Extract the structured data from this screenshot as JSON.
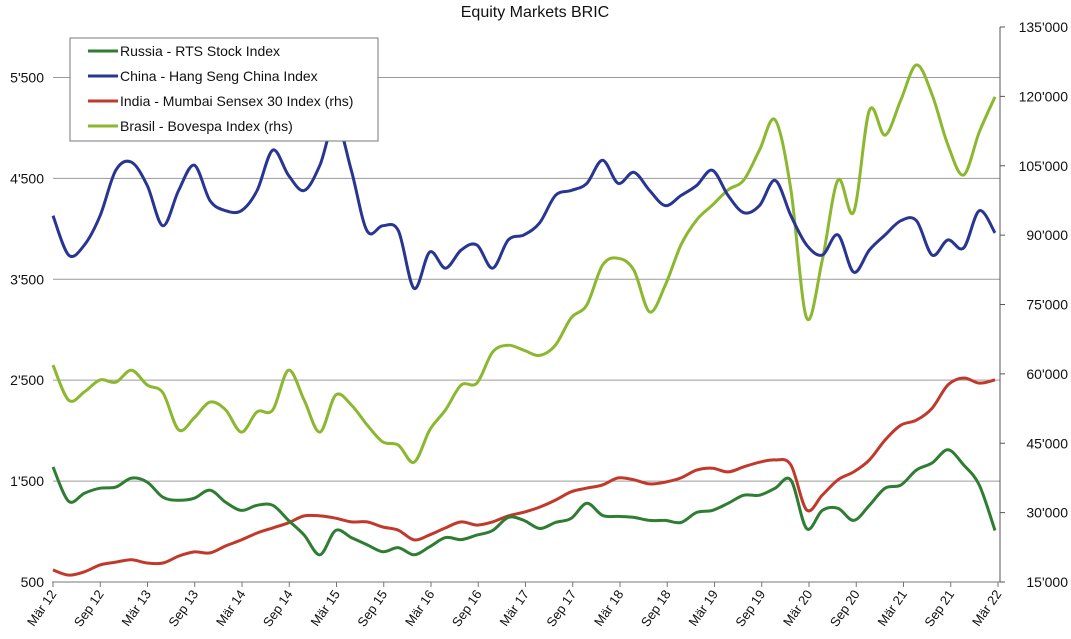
{
  "chart_data": {
    "type": "line",
    "title": "Equity Markets BRIC",
    "xlabel": "",
    "ylabel": "",
    "x_start": "Mär 12",
    "x_step_months": 2,
    "x_ticks": [
      "Mär 12",
      "Sep 12",
      "Mär 13",
      "Sep 13",
      "Mär 14",
      "Sep 14",
      "Mär 15",
      "Sep 15",
      "Mär 16",
      "Sep 16",
      "Mär 17",
      "Sep 17",
      "Mär 18",
      "Sep 18",
      "Mär 19",
      "Sep 19",
      "Mär 20",
      "Sep 20",
      "Mär 21",
      "Sep 21",
      "Mär 22"
    ],
    "y_left": {
      "ylim": [
        500,
        6000
      ],
      "ticks": [
        500,
        1500,
        2500,
        3500,
        4500,
        5500
      ],
      "tick_labels": [
        "500",
        "1'500",
        "2'500",
        "3'500",
        "4'500",
        "5'500"
      ]
    },
    "y_right": {
      "ylim": [
        15000,
        135000
      ],
      "ticks": [
        15000,
        30000,
        45000,
        60000,
        75000,
        90000,
        105000,
        120000,
        135000
      ],
      "tick_labels": [
        "15'000",
        "30'000",
        "45'000",
        "60'000",
        "75'000",
        "90'000",
        "105'000",
        "120'000",
        "135'000"
      ]
    },
    "grid": "horizontal",
    "legend_position": "top-left",
    "series": [
      {
        "name": "Russia - RTS Stock Index",
        "axis": "left",
        "color": "#2e7d32",
        "values": [
          1640,
          1300,
          1380,
          1430,
          1440,
          1530,
          1490,
          1340,
          1310,
          1330,
          1410,
          1290,
          1210,
          1260,
          1260,
          1110,
          965,
          770,
          1010,
          940,
          870,
          800,
          840,
          770,
          850,
          940,
          920,
          965,
          1010,
          1140,
          1110,
          1030,
          1090,
          1130,
          1280,
          1160,
          1150,
          1140,
          1110,
          1110,
          1090,
          1190,
          1210,
          1280,
          1360,
          1360,
          1430,
          1510,
          1030,
          1210,
          1230,
          1110,
          1260,
          1430,
          1460,
          1610,
          1680,
          1810,
          1660,
          1460,
          1010
        ]
      },
      {
        "name": "China - Hang Seng China Index",
        "axis": "left",
        "color": "#283593",
        "values": [
          4130,
          3740,
          3840,
          4130,
          4580,
          4660,
          4430,
          4030,
          4380,
          4630,
          4280,
          4180,
          4180,
          4380,
          4780,
          4530,
          4380,
          4630,
          5070,
          4580,
          3980,
          4030,
          3980,
          3410,
          3770,
          3610,
          3790,
          3840,
          3610,
          3890,
          3940,
          4060,
          4330,
          4380,
          4450,
          4680,
          4450,
          4560,
          4380,
          4230,
          4330,
          4430,
          4580,
          4330,
          4160,
          4230,
          4480,
          4130,
          3840,
          3740,
          3940,
          3570,
          3790,
          3940,
          4080,
          4080,
          3740,
          3890,
          3810,
          4180,
          3960
        ]
      },
      {
        "name": "India - Mumbai Sensex 30 Index (rhs)",
        "axis": "right",
        "color": "#c0392b",
        "values": [
          17600,
          16500,
          17200,
          18700,
          19300,
          19800,
          19100,
          19100,
          20600,
          21500,
          21300,
          22800,
          24100,
          25600,
          26700,
          27800,
          29300,
          29300,
          28800,
          28000,
          28000,
          26900,
          26200,
          24100,
          25200,
          26700,
          28000,
          27300,
          28000,
          29300,
          30100,
          31200,
          32700,
          34500,
          35300,
          36000,
          37500,
          37100,
          36200,
          36600,
          37500,
          39200,
          39600,
          38800,
          39900,
          40900,
          41400,
          40300,
          30600,
          33800,
          37100,
          38800,
          41400,
          45700,
          48900,
          50000,
          52600,
          57600,
          59100,
          58000,
          58700
        ]
      },
      {
        "name": "Brasil - Bovespa Index (rhs)",
        "axis": "right",
        "color": "#8bb82e",
        "values": [
          61900,
          54300,
          56100,
          58700,
          58200,
          60800,
          57600,
          55900,
          47900,
          50500,
          53900,
          52200,
          47400,
          51800,
          52200,
          60800,
          54300,
          47400,
          55400,
          53300,
          49000,
          45300,
          44600,
          40900,
          47900,
          52200,
          57600,
          58000,
          64700,
          66200,
          65100,
          64000,
          66200,
          72100,
          74900,
          83500,
          85000,
          82400,
          73400,
          79200,
          87900,
          93300,
          96500,
          99800,
          101900,
          108400,
          114900,
          99800,
          72100,
          84600,
          101900,
          95000,
          117000,
          111600,
          119200,
          126800,
          120300,
          109500,
          103000,
          112300,
          119900
        ]
      }
    ]
  }
}
